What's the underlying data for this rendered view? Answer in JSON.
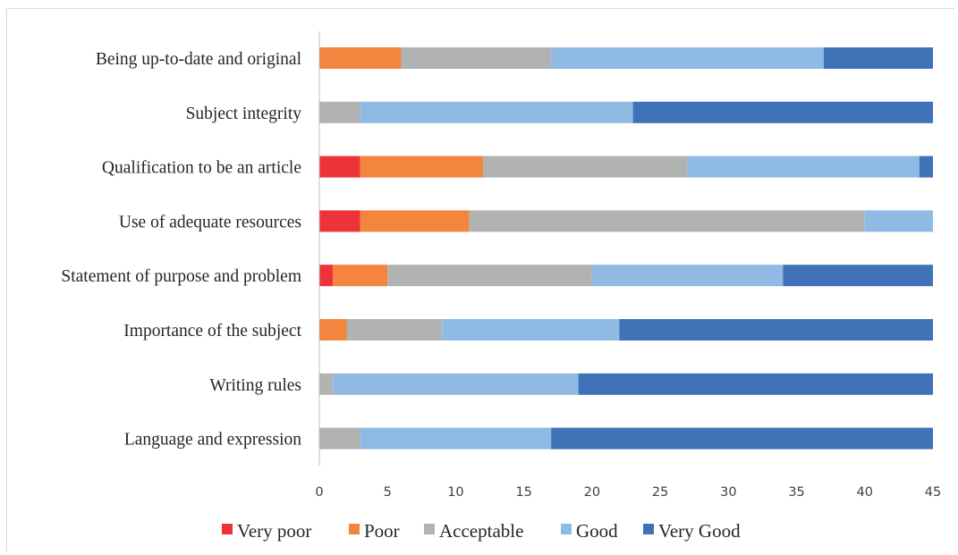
{
  "chart_data": {
    "type": "bar",
    "orientation": "horizontal",
    "stacked": true,
    "categories": [
      "Being up-to-date and original",
      "Subject integrity",
      "Qualification to be an article",
      "Use of adequate resources",
      "Statement of purpose and problem",
      "Importance of the subject",
      "Writing rules",
      "Language and expression"
    ],
    "series": [
      {
        "name": "Very poor",
        "color": "#ee3338",
        "values": [
          0,
          0,
          3,
          3,
          1,
          0,
          0,
          0
        ]
      },
      {
        "name": "Poor",
        "color": "#f4853f",
        "values": [
          6,
          0,
          9,
          8,
          4,
          2,
          0,
          0
        ]
      },
      {
        "name": "Acceptable",
        "color": "#b1b3b2",
        "values": [
          11,
          3,
          15,
          29,
          15,
          7,
          1,
          3
        ]
      },
      {
        "name": "Good",
        "color": "#8fbae3",
        "values": [
          20,
          20,
          17,
          5,
          14,
          13,
          18,
          14
        ]
      },
      {
        "name": "Very Good",
        "color": "#4072b8",
        "values": [
          8,
          22,
          1,
          0,
          11,
          23,
          26,
          28
        ]
      }
    ],
    "xlim": [
      0,
      45
    ],
    "xticks": [
      0,
      5,
      10,
      15,
      20,
      25,
      30,
      35,
      40,
      45
    ],
    "grid": false,
    "legend_position": "bottom",
    "title": "",
    "xlabel": "",
    "ylabel": ""
  }
}
